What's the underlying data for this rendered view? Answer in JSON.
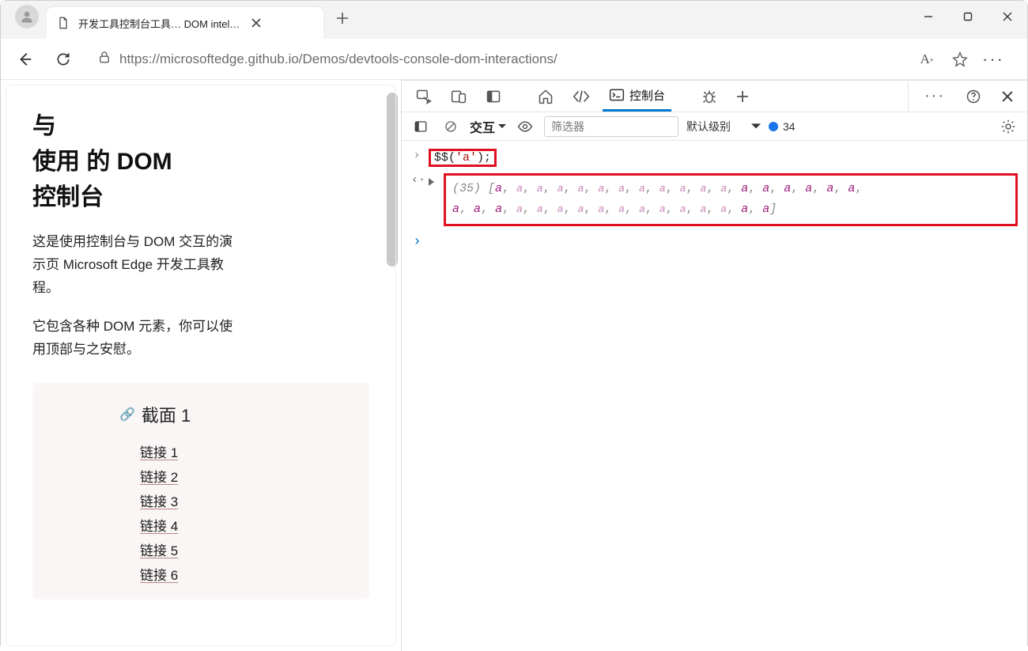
{
  "browser": {
    "tab_title": "开发工具控制台工具…  DOM intel…",
    "url": "https://microsoftedge.github.io/Demos/devtools-console-dom-interactions/"
  },
  "page": {
    "h1_line1": "与",
    "h1_line2": "使用 的 DOM",
    "h1_line3": "控制台",
    "p1": "这是使用控制台与 DOM 交互的演示页 Microsoft Edge 开发工具教程。",
    "p2": "它包含各种 DOM 元素，你可以使用顶部与之安慰。",
    "section1_title": "截面 1",
    "links": [
      "链接 1",
      "链接 2",
      "链接 3",
      "链接 4",
      "链接 5",
      "链接 6"
    ]
  },
  "devtools": {
    "tabs": {
      "console_label": "控制台"
    },
    "console_toolbar": {
      "context_label": "交互",
      "filter_placeholder": "筛选器",
      "levels_label": "默认级别",
      "issues_count": "34"
    },
    "console": {
      "command": "$$('a');",
      "result_count": "(35)",
      "highlight_color": "#e01020",
      "array_item_color": "#9b1b7a",
      "muted_color": "#888888",
      "n_items_line1": 18,
      "n_bold_tail_line1": 6,
      "n_bold_head_line2": 3,
      "n_items_mid_line2": 11,
      "n_bold_tail_line2": 2
    }
  }
}
